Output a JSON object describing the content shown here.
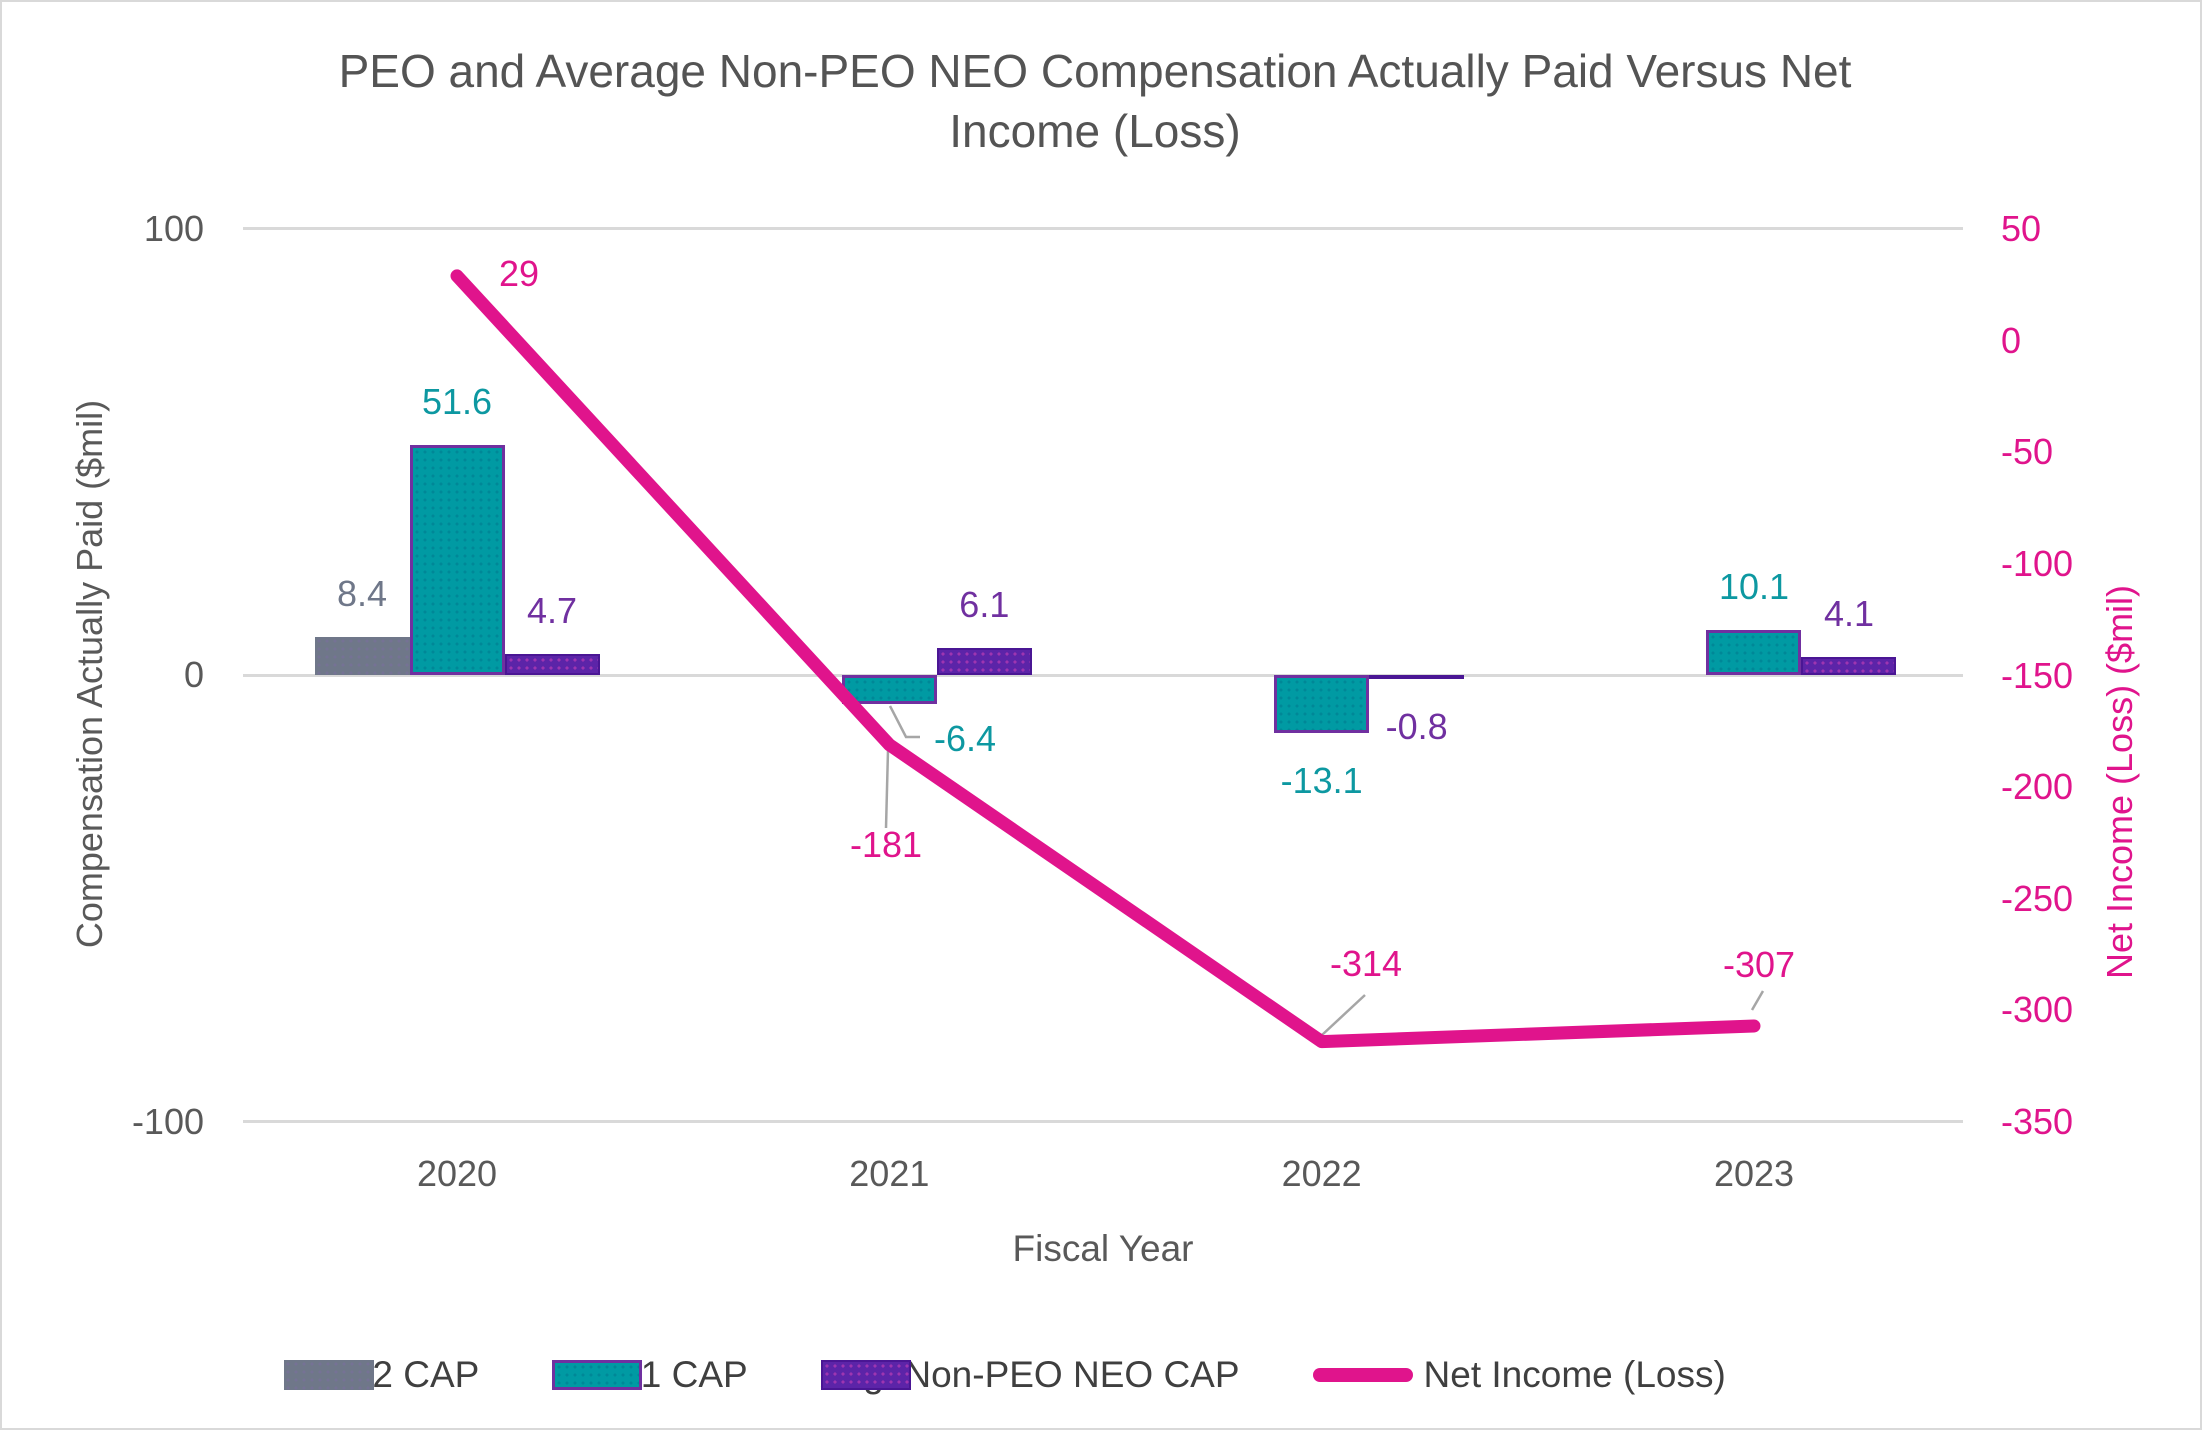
{
  "title": {
    "full": "PEO and Average Non-PEO NEO Compensation Actually Paid Versus Net Income (Loss)",
    "lines": [
      "PEO and Average Non-PEO NEO Compensation Actually Paid Versus Net",
      "Income (Loss)"
    ]
  },
  "chart_data": {
    "type": "combo",
    "title": "PEO and Average Non-PEO NEO Compensation Actually Paid Versus Net Income (Loss)",
    "xlabel": "Fiscal Year",
    "ylabel_left": "Compensation Actually Paid ($mil)",
    "ylabel_right": "Net Income (Loss) ($mil)",
    "categories": [
      "2020",
      "2021",
      "2022",
      "2023"
    ],
    "left_axis": {
      "range": [
        -100,
        100
      ],
      "ticks": [
        100,
        0,
        -100
      ]
    },
    "right_axis": {
      "range": [
        -350,
        50
      ],
      "ticks": [
        50,
        0,
        -50,
        -100,
        -150,
        -200,
        -250,
        -300,
        -350
      ]
    },
    "gridlines": true,
    "legend_position": "bottom",
    "series": [
      {
        "name": "PEO 2 CAP",
        "type": "bar",
        "axis": "left",
        "color": "#6F7789",
        "label_color": "#6F7789",
        "values": [
          8.4,
          null,
          null,
          null
        ]
      },
      {
        "name": "PEO 1 CAP",
        "type": "bar",
        "axis": "left",
        "color": "#009AA3",
        "border_color": "#7030A0",
        "label_color": "#0D98A1",
        "values": [
          51.6,
          -6.4,
          -13.1,
          10.1
        ]
      },
      {
        "name": "Avg. Non-PEO NEO CAP",
        "type": "bar",
        "axis": "left",
        "color": "#5C24A8",
        "label_color": "#7030A0",
        "values": [
          4.7,
          6.1,
          -0.8,
          4.1
        ]
      },
      {
        "name": "Net Income (Loss)",
        "type": "line",
        "axis": "right",
        "color": "#E0148C",
        "label_color": "#E0148C",
        "values": [
          29,
          -181,
          -314,
          -307
        ]
      }
    ]
  },
  "colors": {
    "grid": "#D9D9D9",
    "axis_text": "#595959",
    "right_axis_text": "#E0148C",
    "legend_text": "#3F3F3F",
    "leader_line": "#A6A6A6"
  }
}
